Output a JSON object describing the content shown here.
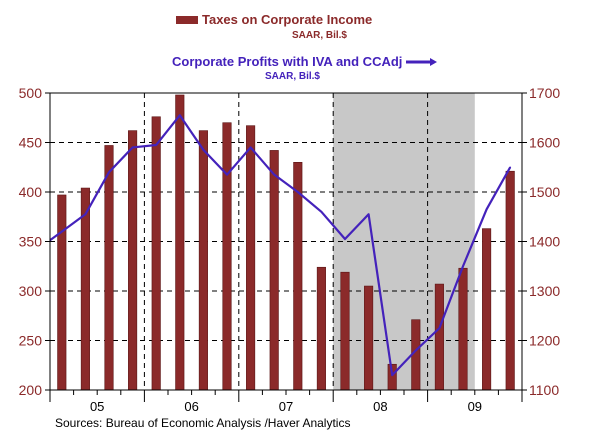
{
  "chart_data": {
    "type": "bar+line",
    "legend": {
      "bar_title": "Taxes on Corporate Income",
      "bar_subtitle": "SAAR, Bil.$",
      "line_title": "Corporate Profits with IVA and CCAdj",
      "line_subtitle": "SAAR, Bil.$"
    },
    "source": "Sources:  Bureau of Economic Analysis /Haver Analytics",
    "x_tick_labels": [
      "05",
      "06",
      "07",
      "08",
      "09"
    ],
    "quarters": [
      "2005Q1",
      "2005Q2",
      "2005Q3",
      "2005Q4",
      "2006Q1",
      "2006Q2",
      "2006Q3",
      "2006Q4",
      "2007Q1",
      "2007Q2",
      "2007Q3",
      "2007Q4",
      "2008Q1",
      "2008Q2",
      "2008Q3",
      "2008Q4",
      "2009Q1",
      "2009Q2",
      "2009Q3",
      "2009Q4"
    ],
    "left_axis": {
      "ylim": [
        200,
        500
      ],
      "ticks": [
        200,
        250,
        300,
        350,
        400,
        450,
        500
      ]
    },
    "right_axis": {
      "ylim": [
        1100,
        1700
      ],
      "ticks": [
        1100,
        1200,
        1300,
        1400,
        1500,
        1600,
        1700
      ]
    },
    "recession_shading": {
      "start_quarter_index": 12,
      "end_quarter_index": 18
    },
    "series": [
      {
        "name": "Taxes on Corporate Income",
        "axis": "left",
        "kind": "bar",
        "color": "#8b2a2a",
        "values": [
          397,
          404,
          447,
          462,
          476,
          498,
          462,
          470,
          467,
          442,
          430,
          324,
          319,
          305,
          226,
          271,
          307,
          323,
          363,
          421
        ]
      },
      {
        "name": "Corporate Profits with IVA and CCAdj",
        "axis": "right",
        "kind": "line",
        "color": "#4422bb",
        "values": [
          1420,
          1455,
          1540,
          1590,
          1595,
          1655,
          1585,
          1535,
          1590,
          1535,
          1500,
          1460,
          1405,
          1455,
          1130,
          1180,
          1225,
          1350,
          1465,
          1550
        ]
      }
    ]
  }
}
